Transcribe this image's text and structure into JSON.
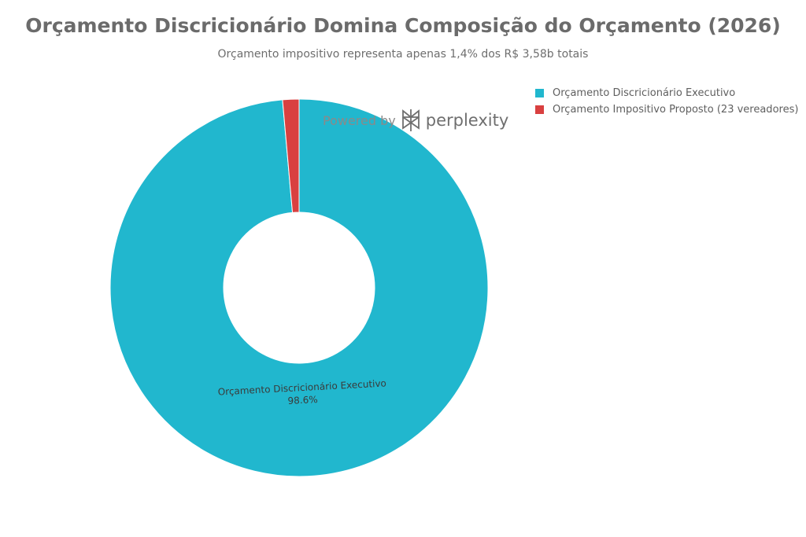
{
  "chart_data": {
    "type": "pie",
    "title": "Orçamento Discricionário Domina Composição do Orçamento (2026)",
    "subtitle": "Orçamento impositivo representa apenas 1,4% dos R$ 3,58b totais",
    "hole": true,
    "legend_position": "top-right",
    "slices": [
      {
        "label": "Orçamento Discricionário Executivo",
        "value": 98.6,
        "color": "#21b7ce",
        "data_label": "Orçamento Discricionário Executivo",
        "percent_label": "98.6%"
      },
      {
        "label": "Orçamento Impositivo Proposto (23 vereadores)",
        "value": 1.4,
        "color": "#d94040"
      }
    ]
  },
  "watermark": {
    "powered_by": "Powered by",
    "brand": "perplexity",
    "icon": "perplexity-logo-icon"
  }
}
